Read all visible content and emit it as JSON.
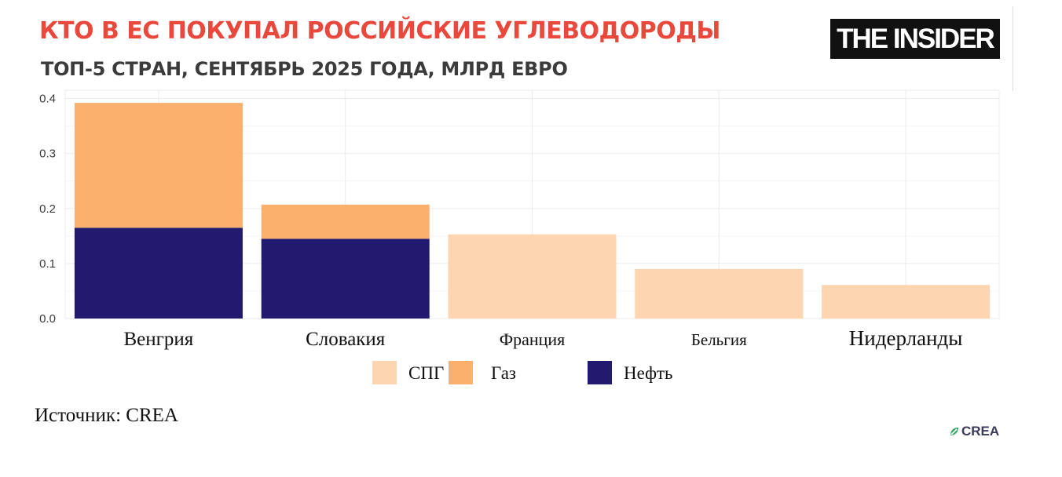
{
  "header": {
    "title": "КТО В ЕС ПОКУПАЛ РОССИЙСКИЕ УГЛЕВОДОРОДЫ",
    "subtitle": "ТОП-5 СТРАН, СЕНТЯБРЬ 2025 ГОДА, МЛРД ЕВРО",
    "logo_text": "THE INSIDER"
  },
  "footer": {
    "source": "Источник: CREA",
    "crea_logo_text": "CREA",
    "crea_icon": "crea-leaf-icon"
  },
  "colors": {
    "lng": "#fdd5b1",
    "gas": "#fbb06e",
    "oil": "#211a6e",
    "grid": "#ebebeb",
    "title": "#e8493c"
  },
  "chart_data": {
    "type": "bar",
    "stacked": true,
    "title": "КТО В ЕС ПОКУПАЛ РОССИЙСКИЕ УГЛЕВОДОРОДЫ",
    "subtitle": "ТОП-5 СТРАН, СЕНТЯБРЬ 2025 ГОДА, МЛРД ЕВРО",
    "xlabel": "",
    "ylabel": "",
    "categories": [
      "Венгрия",
      "Словакия",
      "Франция",
      "Бельгия",
      "Нидерланды"
    ],
    "series": [
      {
        "name": "Нефть",
        "color": "#211a6e",
        "values": [
          0.165,
          0.145,
          0,
          0,
          0
        ]
      },
      {
        "name": "Газ",
        "color": "#fbb06e",
        "values": [
          0.227,
          0.062,
          0,
          0,
          0
        ]
      },
      {
        "name": "СПГ",
        "color": "#fdd5b1",
        "values": [
          0,
          0,
          0.153,
          0.09,
          0.061
        ]
      }
    ],
    "legend_order": [
      "СПГ",
      "Газ",
      "Нефть"
    ],
    "yticks": [
      "0.0",
      "0.1",
      "0.2",
      "0.3",
      "0.4"
    ],
    "ylim": [
      0,
      0.4
    ],
    "grid": true,
    "legend_position": "bottom"
  }
}
